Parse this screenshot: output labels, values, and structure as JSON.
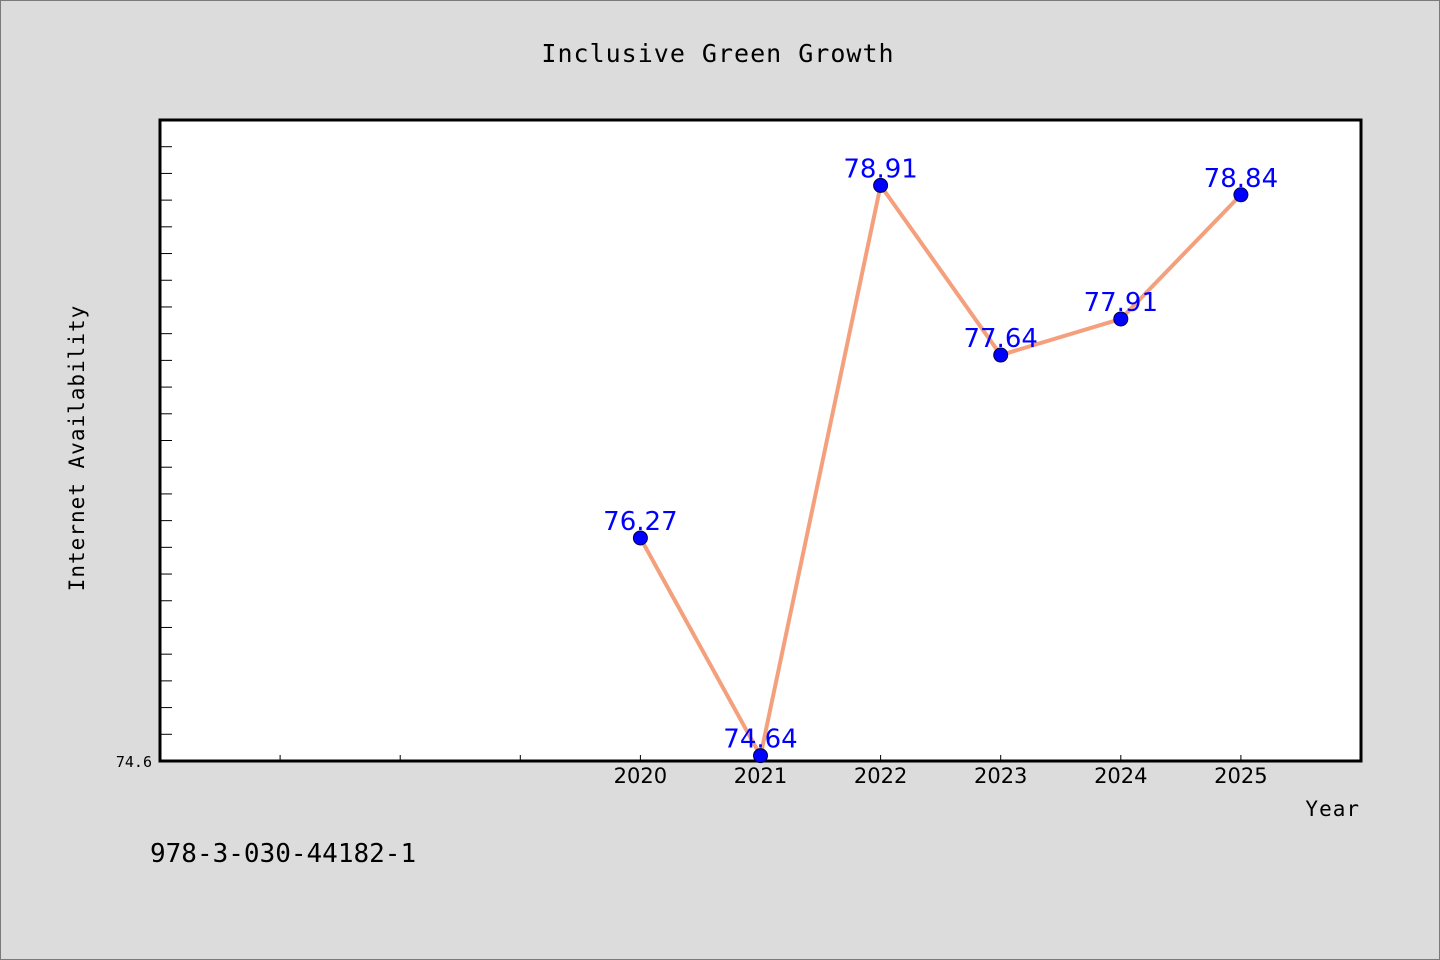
{
  "chart_data": {
    "type": "line",
    "title": "Inclusive Green Growth",
    "xlabel": "Year",
    "ylabel": "Internet Availability",
    "x": [
      2020,
      2021,
      2022,
      2023,
      2024,
      2025
    ],
    "series": [
      {
        "values": [
          76.27,
          74.64,
          78.91,
          77.64,
          77.91,
          78.84
        ],
        "data_labels": [
          "76.27",
          "74.64",
          "78.91",
          "77.64",
          "77.91",
          "78.84"
        ],
        "line_color": "#f4a07c",
        "marker_color": "#0000ff"
      }
    ],
    "xlim": [
      2016,
      2026
    ],
    "ylim": [
      74.6,
      79.4
    ],
    "x_ticks": [
      "2020",
      "2021",
      "2022",
      "2023",
      "2024",
      "2025"
    ],
    "y_tick_labels": [
      "74.6"
    ],
    "grid": false,
    "legend": "none"
  },
  "footer": {
    "isbn": "978-3-030-44182-1"
  },
  "colors": {
    "background": "#dcdcdc",
    "plot_background": "#ffffff",
    "line": "#f4a07c",
    "marker": "#0000ff",
    "data_label": "#0000ff"
  }
}
